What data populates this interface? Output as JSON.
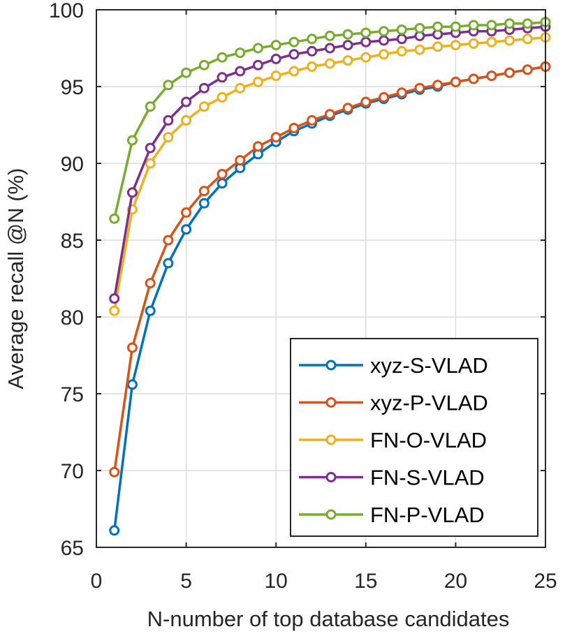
{
  "chart_data": {
    "type": "line",
    "title": "",
    "xlabel": "N-number of top database candidates",
    "ylabel": "Average recall @N (%)",
    "xlim": [
      0,
      25
    ],
    "ylim": [
      65,
      100
    ],
    "xticks": [
      0,
      5,
      10,
      15,
      20,
      25
    ],
    "yticks": [
      65,
      70,
      75,
      80,
      85,
      90,
      95,
      100
    ],
    "grid": true,
    "legend_position": "bottom-right",
    "x": [
      1,
      2,
      3,
      4,
      5,
      6,
      7,
      8,
      9,
      10,
      11,
      12,
      13,
      14,
      15,
      16,
      17,
      18,
      19,
      20,
      21,
      22,
      23,
      24,
      25
    ],
    "series": [
      {
        "name": "xyz-S-VLAD",
        "color": "#0072BD",
        "values": [
          66.1,
          75.6,
          80.4,
          83.5,
          85.7,
          87.4,
          88.7,
          89.7,
          90.6,
          91.4,
          92.1,
          92.6,
          93.1,
          93.5,
          93.9,
          94.2,
          94.5,
          94.8,
          95.0,
          95.3,
          95.5,
          95.7,
          95.9,
          96.1,
          96.3
        ]
      },
      {
        "name": "xyz-P-VLAD",
        "color": "#D95319",
        "values": [
          69.9,
          78.0,
          82.2,
          85.0,
          86.8,
          88.2,
          89.3,
          90.2,
          91.1,
          91.7,
          92.3,
          92.8,
          93.2,
          93.6,
          94.0,
          94.3,
          94.6,
          94.9,
          95.1,
          95.3,
          95.5,
          95.7,
          95.9,
          96.1,
          96.3
        ]
      },
      {
        "name": "FN-O-VLAD",
        "color": "#EDB120",
        "values": [
          80.4,
          87.0,
          90.0,
          91.7,
          92.8,
          93.7,
          94.3,
          94.9,
          95.3,
          95.7,
          96.0,
          96.3,
          96.5,
          96.7,
          96.9,
          97.1,
          97.3,
          97.4,
          97.6,
          97.7,
          97.8,
          97.9,
          98.0,
          98.1,
          98.2
        ]
      },
      {
        "name": "FN-S-VLAD",
        "color": "#7E2F8E",
        "values": [
          81.2,
          88.1,
          91.0,
          92.8,
          94.0,
          94.9,
          95.6,
          96.0,
          96.4,
          96.8,
          97.1,
          97.3,
          97.5,
          97.7,
          97.9,
          98.0,
          98.1,
          98.3,
          98.4,
          98.5,
          98.6,
          98.6,
          98.7,
          98.8,
          98.9
        ]
      },
      {
        "name": "FN-P-VLAD",
        "color": "#77AC30",
        "values": [
          86.4,
          91.5,
          93.7,
          95.1,
          95.9,
          96.4,
          96.9,
          97.2,
          97.5,
          97.7,
          97.9,
          98.1,
          98.3,
          98.4,
          98.5,
          98.6,
          98.7,
          98.8,
          98.9,
          98.9,
          99.0,
          99.0,
          99.1,
          99.1,
          99.2
        ]
      }
    ]
  }
}
